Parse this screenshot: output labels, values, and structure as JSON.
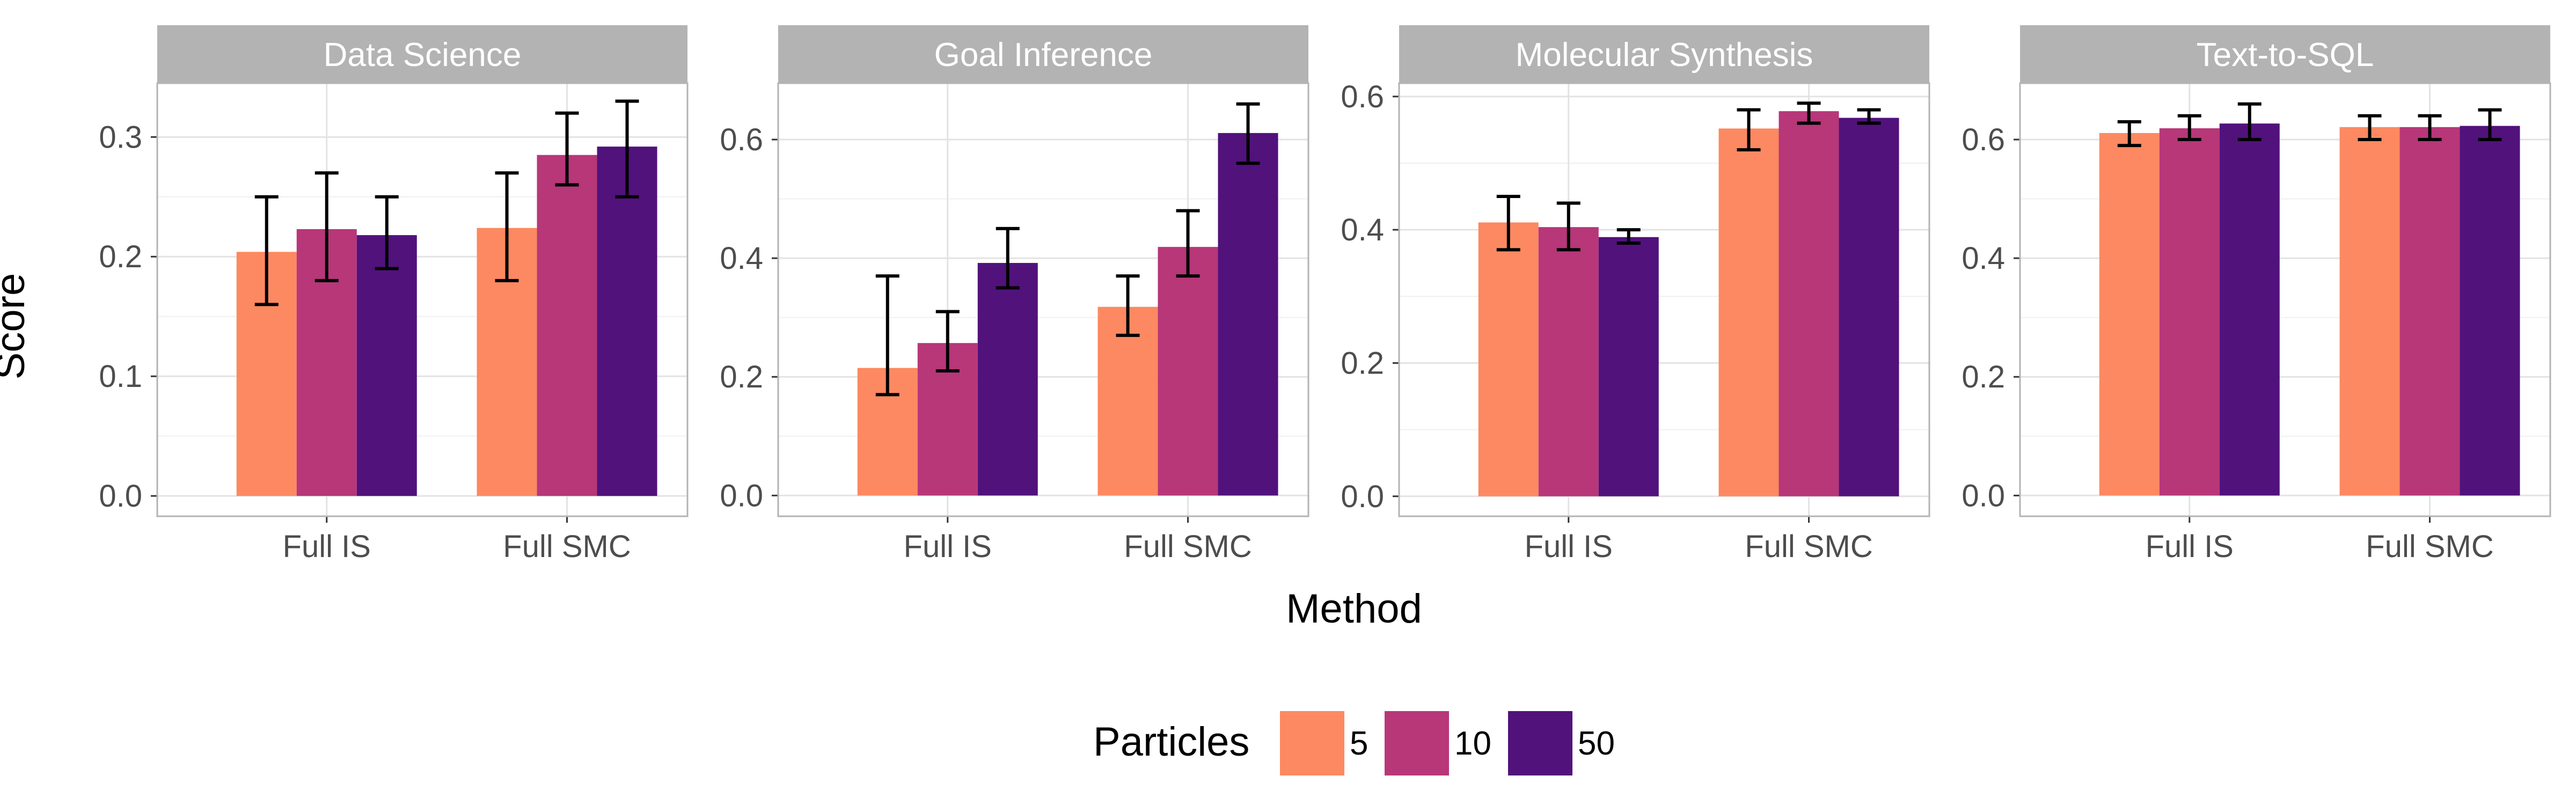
{
  "chart_data": {
    "type": "bar",
    "xlabel": "Method",
    "ylabel": "Score",
    "categories": [
      "Full IS",
      "Full SMC"
    ],
    "legend": {
      "title": "Particles",
      "position": "bottom",
      "entries": [
        {
          "label": "5",
          "color": "#fc8961"
        },
        {
          "label": "10",
          "color": "#b73779"
        },
        {
          "label": "50",
          "color": "#51127c"
        }
      ]
    },
    "panels": [
      {
        "title": "Data Science",
        "ylim": [
          -0.017,
          0.345
        ],
        "yticks": [
          0.0,
          0.1,
          0.2,
          0.3
        ],
        "yticklabels": [
          "0.0",
          "0.1",
          "0.2",
          "0.3"
        ],
        "series": [
          {
            "name": "5",
            "values": [
              0.204,
              0.224
            ],
            "err_low": [
              0.16,
              0.18
            ],
            "err_high": [
              0.25,
              0.27
            ]
          },
          {
            "name": "10",
            "values": [
              0.223,
              0.285
            ],
            "err_low": [
              0.18,
              0.26
            ],
            "err_high": [
              0.27,
              0.32
            ]
          },
          {
            "name": "50",
            "values": [
              0.218,
              0.292
            ],
            "err_low": [
              0.19,
              0.25
            ],
            "err_high": [
              0.25,
              0.33
            ]
          }
        ]
      },
      {
        "title": "Goal Inference",
        "ylim": [
          -0.035,
          0.695
        ],
        "yticks": [
          0.0,
          0.2,
          0.4,
          0.6
        ],
        "yticklabels": [
          "0.0",
          "0.2",
          "0.4",
          "0.6"
        ],
        "series": [
          {
            "name": "5",
            "values": [
              0.215,
              0.318
            ],
            "err_low": [
              0.17,
              0.27
            ],
            "err_high": [
              0.37,
              0.37
            ]
          },
          {
            "name": "10",
            "values": [
              0.257,
              0.419
            ],
            "err_low": [
              0.21,
              0.37
            ],
            "err_high": [
              0.31,
              0.48
            ]
          },
          {
            "name": "50",
            "values": [
              0.392,
              0.611
            ],
            "err_low": [
              0.35,
              0.56
            ],
            "err_high": [
              0.45,
              0.66
            ]
          }
        ]
      },
      {
        "title": "Molecular Synthesis",
        "ylim": [
          -0.03,
          0.62
        ],
        "yticks": [
          0.0,
          0.2,
          0.4,
          0.6
        ],
        "yticklabels": [
          "0.0",
          "0.2",
          "0.4",
          "0.6"
        ],
        "series": [
          {
            "name": "5",
            "values": [
              0.411,
              0.552
            ],
            "err_low": [
              0.37,
              0.52
            ],
            "err_high": [
              0.45,
              0.58
            ]
          },
          {
            "name": "10",
            "values": [
              0.404,
              0.578
            ],
            "err_low": [
              0.37,
              0.56
            ],
            "err_high": [
              0.44,
              0.59
            ]
          },
          {
            "name": "50",
            "values": [
              0.389,
              0.568
            ],
            "err_low": [
              0.38,
              0.56
            ],
            "err_high": [
              0.4,
              0.58
            ]
          }
        ]
      },
      {
        "title": "Text-to-SQL",
        "ylim": [
          -0.035,
          0.695
        ],
        "yticks": [
          0.0,
          0.2,
          0.4,
          0.6
        ],
        "yticklabels": [
          "0.0",
          "0.2",
          "0.4",
          "0.6"
        ],
        "series": [
          {
            "name": "5",
            "values": [
              0.611,
              0.621
            ],
            "err_low": [
              0.59,
              0.6
            ],
            "err_high": [
              0.63,
              0.64
            ]
          },
          {
            "name": "10",
            "values": [
              0.619,
              0.621
            ],
            "err_low": [
              0.6,
              0.6
            ],
            "err_high": [
              0.64,
              0.64
            ]
          },
          {
            "name": "50",
            "values": [
              0.627,
              0.623
            ],
            "err_low": [
              0.6,
              0.6
            ],
            "err_high": [
              0.66,
              0.65
            ]
          }
        ]
      }
    ]
  }
}
